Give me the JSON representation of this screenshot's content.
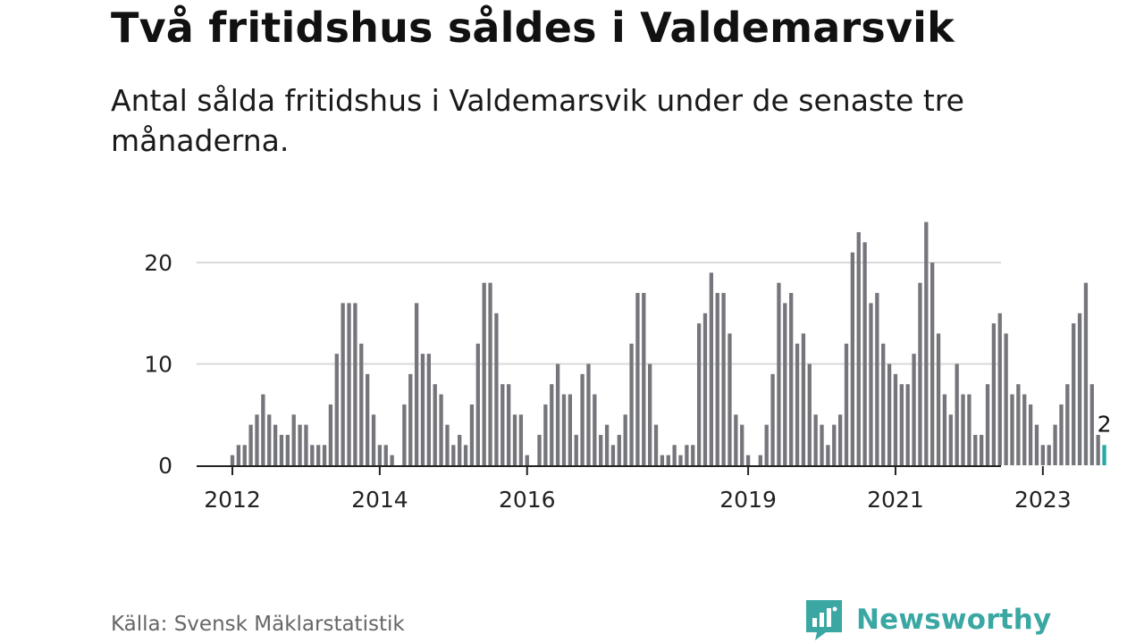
{
  "header": {
    "title": "Två fritidshus såldes i Valdemarsvik",
    "subtitle": "Antal sålda fritidshus i Valdemarsvik under de senaste tre månaderna."
  },
  "footer": {
    "source": "Källa: Svensk Mäklarstatistik",
    "brand": "Newsworthy"
  },
  "colors": {
    "bar": "#75757c",
    "highlight": "#27a9a4",
    "grid": "#d9d9d9",
    "axis": "#222222",
    "brand": "#3aa7a3"
  },
  "chart_data": {
    "type": "bar",
    "title": "Två fritidshus såldes i Valdemarsvik",
    "subtitle": "Antal sålda fritidshus i Valdemarsvik under de senaste tre månaderna.",
    "xlabel": "",
    "ylabel": "",
    "ylim": [
      0,
      24
    ],
    "yticks": [
      0,
      10,
      20
    ],
    "xticks": [
      "2012",
      "2014",
      "2016",
      "2019",
      "2021",
      "2023"
    ],
    "grid": true,
    "legend": "none",
    "start_month": "2012-01",
    "annotation": {
      "label": "2",
      "target": "last"
    },
    "values": [
      1,
      2,
      2,
      4,
      5,
      7,
      5,
      4,
      3,
      3,
      5,
      4,
      4,
      2,
      2,
      2,
      6,
      11,
      16,
      16,
      16,
      12,
      9,
      5,
      2,
      2,
      1,
      0,
      6,
      9,
      16,
      11,
      11,
      8,
      7,
      4,
      2,
      3,
      2,
      6,
      12,
      18,
      18,
      15,
      8,
      8,
      5,
      5,
      1,
      0,
      3,
      6,
      8,
      10,
      7,
      7,
      3,
      9,
      10,
      7,
      3,
      4,
      2,
      3,
      5,
      12,
      17,
      17,
      10,
      4,
      1,
      1,
      2,
      1,
      2,
      2,
      14,
      15,
      19,
      17,
      17,
      13,
      5,
      4,
      1,
      0,
      1,
      4,
      9,
      18,
      16,
      17,
      12,
      13,
      10,
      5,
      4,
      2,
      4,
      5,
      12,
      21,
      23,
      22,
      16,
      17,
      12,
      10,
      9,
      8,
      8,
      11,
      18,
      24,
      20,
      13,
      7,
      5,
      10,
      7,
      7,
      3,
      3,
      8,
      14,
      15,
      13,
      7,
      8,
      7,
      6,
      4,
      2,
      2,
      4,
      6,
      8,
      14,
      15,
      18,
      8,
      3,
      2
    ]
  }
}
